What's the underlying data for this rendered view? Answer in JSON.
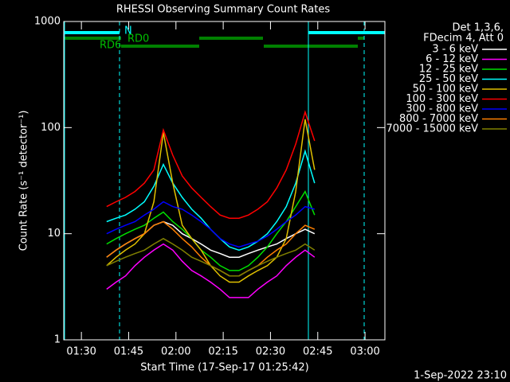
{
  "chart_data": {
    "type": "line",
    "title": "RHESSI Observing Summary Count Rates",
    "xlabel": "Start Time (17-Sep-17 01:25:42)",
    "ylabel": "Count Rate (s⁻¹ detector⁻¹)",
    "legend_header": [
      "Det 1,3,6,",
      "FDecim 4, Att 0"
    ],
    "annotations": [
      "N",
      "RD0",
      "RD6"
    ],
    "footer": "1-Sep-2022 23:10",
    "log_y": true,
    "legend": "right",
    "xlim": [
      84.4,
      186.3
    ],
    "xticks": [
      {
        "value": 90,
        "label": "01:30"
      },
      {
        "value": 105,
        "label": "01:45"
      },
      {
        "value": 120,
        "label": "02:00"
      },
      {
        "value": 135,
        "label": "02:15"
      },
      {
        "value": 150,
        "label": "02:30"
      },
      {
        "value": 165,
        "label": "02:45"
      },
      {
        "value": 180,
        "label": "03:00"
      }
    ],
    "ylim": [
      1,
      1000
    ],
    "yticks": [
      1,
      10,
      100,
      1000
    ],
    "x": [
      98,
      101,
      104,
      107,
      110,
      113,
      116,
      119,
      122,
      125,
      128,
      131,
      134,
      137,
      140,
      143,
      146,
      149,
      152,
      155,
      158,
      161,
      164
    ],
    "series": [
      {
        "name": "3 - 6 keV",
        "color": "#ffffff",
        "values": [
          6,
          7,
          8,
          9,
          10,
          12,
          13,
          12,
          10,
          9,
          8,
          7,
          6.5,
          6,
          6,
          6.5,
          7,
          7.5,
          8,
          9,
          10,
          11,
          10
        ]
      },
      {
        "name": "6 - 12 keV",
        "color": "#ff00ff",
        "values": [
          3,
          3.5,
          4,
          5,
          6,
          7,
          8,
          7,
          5.5,
          4.5,
          4,
          3.5,
          3,
          2.5,
          2.5,
          2.5,
          3,
          3.5,
          4,
          5,
          6,
          7,
          6
        ]
      },
      {
        "name": "12 - 25 keV",
        "color": "#00e000",
        "values": [
          8,
          9,
          10,
          11,
          12,
          14,
          16,
          13,
          11,
          9,
          7,
          6,
          5,
          4.5,
          4.5,
          5,
          6,
          7.5,
          10,
          13,
          18,
          25,
          15
        ]
      },
      {
        "name": "25 - 50 keV",
        "color": "#00ffff",
        "values": [
          13,
          14,
          15,
          17,
          20,
          28,
          45,
          30,
          22,
          17,
          14,
          11,
          9,
          7.5,
          7,
          7.5,
          8.5,
          10,
          13,
          18,
          30,
          60,
          30
        ]
      },
      {
        "name": "50 - 100 keV",
        "color": "#e0c000",
        "values": [
          5,
          6,
          7,
          8,
          10,
          20,
          90,
          30,
          12,
          9,
          7,
          5,
          4,
          3.5,
          3.5,
          4,
          4.5,
          5,
          6,
          9,
          25,
          120,
          40
        ]
      },
      {
        "name": "100 - 300 keV",
        "color": "#ff0000",
        "values": [
          18,
          20,
          22,
          25,
          30,
          40,
          95,
          55,
          35,
          27,
          22,
          18,
          15,
          14,
          14,
          15,
          17,
          20,
          27,
          40,
          70,
          140,
          75
        ]
      },
      {
        "name": "300 - 800 keV",
        "color": "#0000ff",
        "values": [
          10,
          11,
          12,
          13,
          15,
          17,
          20,
          18,
          17,
          15,
          13,
          11,
          9,
          8,
          7.5,
          8,
          8.5,
          9.5,
          11,
          13,
          15,
          18,
          17
        ]
      },
      {
        "name": "800 - 7000 keV",
        "color": "#ff8000",
        "values": [
          6,
          7,
          8,
          9,
          10,
          12,
          13,
          11,
          9,
          7.5,
          6,
          5,
          4.5,
          4,
          4,
          4.5,
          5,
          6,
          7,
          8,
          10,
          12,
          11
        ]
      },
      {
        "name": "7000 - 15000 keV",
        "color": "#808000",
        "values": [
          5,
          5.5,
          6,
          6.5,
          7,
          8,
          9,
          8,
          7,
          6,
          5.5,
          5,
          4.5,
          4,
          4,
          4.5,
          5,
          5.5,
          6,
          6.5,
          7,
          8,
          7
        ]
      }
    ]
  }
}
